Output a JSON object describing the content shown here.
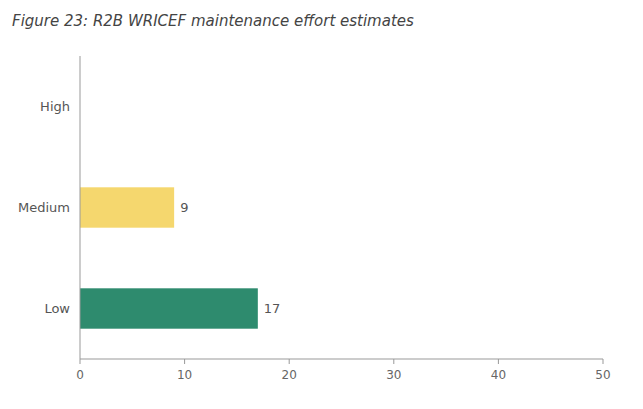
{
  "chart_data": {
    "type": "bar",
    "orientation": "horizontal",
    "title": "Figure 23: R2B WRICEF maintenance effort estimates",
    "categories": [
      "Low",
      "Medium",
      "High"
    ],
    "values": [
      17,
      9,
      0
    ],
    "value_labels": [
      "17",
      "9",
      null
    ],
    "data_labels": true,
    "colors": [
      "#2e8b6e",
      "#f5d76e",
      "#cccccc"
    ],
    "xlim": [
      0,
      50
    ],
    "xticks": [
      0,
      10,
      20,
      30,
      40,
      50
    ],
    "grid": false
  }
}
